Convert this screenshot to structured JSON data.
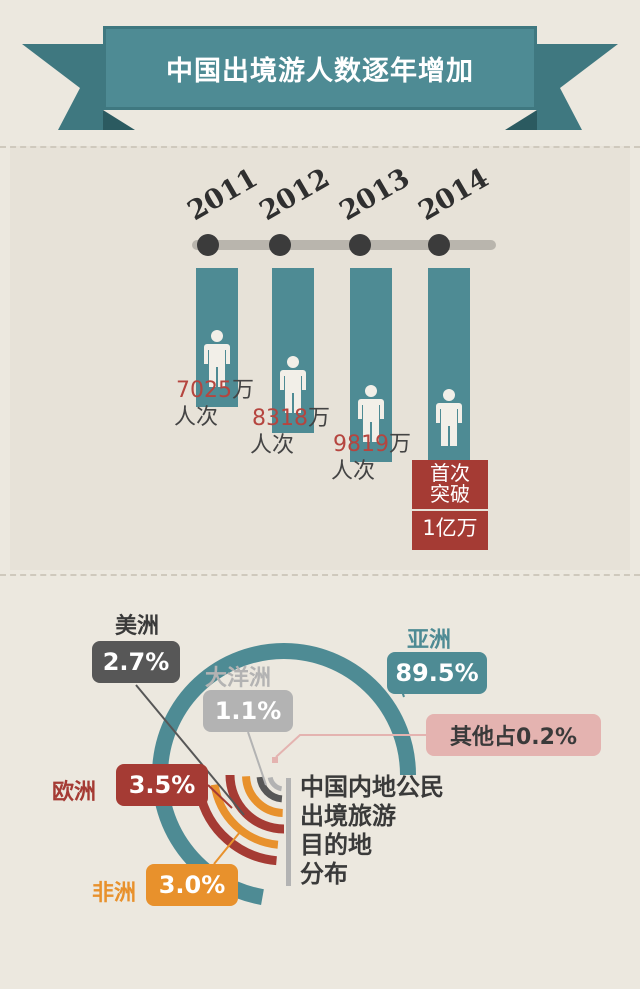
{
  "banner": {
    "title": "中国出境游人数逐年增加"
  },
  "colors": {
    "teal": "#4e8b94",
    "red": "#a53b34",
    "dark": "#3b3b3b",
    "gray": "#b3b3b3",
    "orange": "#e8912c",
    "pink": "#e4b3b0",
    "bg": "#ece8df"
  },
  "chart_data": [
    {
      "type": "bar",
      "categories": [
        "2011",
        "2012",
        "2013",
        "2014"
      ],
      "values": [
        7025,
        8318,
        9819,
        10000
      ],
      "value_labels": [
        {
          "num": "7025",
          "unit": "万",
          "suffix": "人次"
        },
        {
          "num": "8318",
          "unit": "万",
          "suffix": "人次"
        },
        {
          "num": "9819",
          "unit": "万",
          "suffix": "人次"
        },
        {
          "num": "",
          "unit": "",
          "suffix": ""
        }
      ],
      "milestone": {
        "line1": "首次",
        "line2": "突破",
        "line3": "1亿万"
      },
      "icon": "person-icon"
    },
    {
      "type": "pie",
      "title": "中国内地公民出境旅游目的地分布",
      "title_lines": [
        "中国内地公民",
        "出境旅游",
        "目的地",
        "分布"
      ],
      "slices": [
        {
          "name": "亚洲",
          "value": 89.5,
          "label": "89.5%",
          "color": "#4e8b94"
        },
        {
          "name": "美洲",
          "value": 2.7,
          "label": "2.7%",
          "color": "#575757"
        },
        {
          "name": "大洋洲",
          "value": 1.1,
          "label": "1.1%",
          "color": "#b3b3b3"
        },
        {
          "name": "欧洲",
          "value": 3.5,
          "label": "3.5%",
          "color": "#a53b34"
        },
        {
          "name": "非洲",
          "value": 3.0,
          "label": "3.0%",
          "color": "#e8912c"
        },
        {
          "name": "其他",
          "value": 0.2,
          "label": "其他占0.2%",
          "color": "#e4b3b0"
        }
      ]
    }
  ]
}
